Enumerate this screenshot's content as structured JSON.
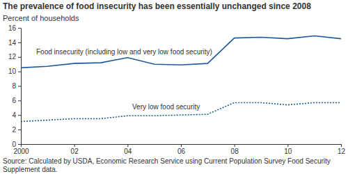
{
  "chart_data": {
    "type": "line",
    "title": "The prevalence of food insecurity has been essentially unchanged since 2008",
    "ylabel": "Percent of households",
    "source": "Source: Calculated by USDA, Economic Research Service using Current Population Survey Food Security Supplement data.",
    "x": [
      2000,
      2001,
      2002,
      2003,
      2004,
      2005,
      2006,
      2007,
      2008,
      2009,
      2010,
      2011,
      2012
    ],
    "xlim": [
      2000,
      2012
    ],
    "xticks": [
      2000,
      {
        "value": 2002,
        "label": "02"
      },
      {
        "value": 2004,
        "label": "04"
      },
      {
        "value": 2006,
        "label": "06"
      },
      {
        "value": 2008,
        "label": "08"
      },
      {
        "value": 2010,
        "label": "10"
      },
      {
        "value": 2012,
        "label": "12"
      }
    ],
    "ylim": [
      0,
      16
    ],
    "yticks": [
      0,
      2,
      4,
      6,
      8,
      10,
      12,
      14,
      16
    ],
    "grid": false,
    "series": [
      {
        "name": "Food insecurity (including low and very low food security)",
        "color": "#1c5a9e",
        "line_style": "solid",
        "values": [
          10.5,
          10.7,
          11.1,
          11.2,
          11.9,
          11.0,
          10.9,
          11.1,
          14.6,
          14.7,
          14.5,
          14.9,
          14.5
        ]
      },
      {
        "name": "Very low food security",
        "color": "#1c5a9e",
        "line_style": "dotted",
        "values": [
          3.1,
          3.3,
          3.5,
          3.5,
          3.9,
          3.9,
          4.0,
          4.1,
          5.7,
          5.7,
          5.4,
          5.7,
          5.7
        ]
      }
    ]
  }
}
